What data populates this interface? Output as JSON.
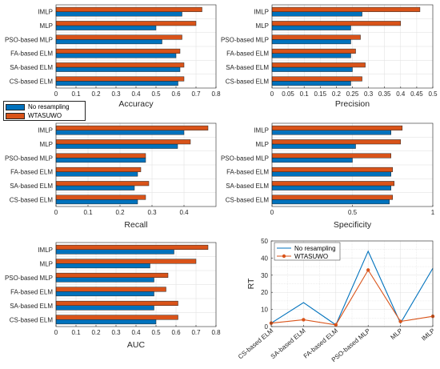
{
  "legend": {
    "entries": [
      "No resampling",
      "WTASUWO"
    ],
    "colors": [
      "#0072BD",
      "#D95319"
    ]
  },
  "chart_data": [
    {
      "type": "bar",
      "orientation": "horizontal",
      "categories": [
        "CS-based ELM",
        "SA-based ELM",
        "FA-based ELM",
        "PSO-based MLP",
        "MLP",
        "IMLP"
      ],
      "series": [
        {
          "name": "No resampling",
          "values": [
            0.61,
            0.62,
            0.6,
            0.53,
            0.5,
            0.63
          ]
        },
        {
          "name": "WTASUWO",
          "values": [
            0.64,
            0.64,
            0.62,
            0.63,
            0.7,
            0.73
          ]
        }
      ],
      "xlabel": "Accuracy",
      "xlim": [
        0,
        0.8
      ],
      "xticks": [
        "0",
        "0.1",
        "0.2",
        "0.3",
        "0.4",
        "0.5",
        "0.6",
        "0.7",
        "0.8"
      ],
      "grid": true
    },
    {
      "type": "bar",
      "orientation": "horizontal",
      "categories": [
        "CS-based ELM",
        "SA-based ELM",
        "FA-based ELM",
        "PSO-based MLP",
        "MLP",
        "IMLP"
      ],
      "series": [
        {
          "name": "No resampling",
          "values": [
            0.245,
            0.25,
            0.245,
            0.245,
            0.245,
            0.28
          ]
        },
        {
          "name": "WTASUWO",
          "values": [
            0.28,
            0.29,
            0.26,
            0.275,
            0.4,
            0.46
          ]
        }
      ],
      "xlabel": "Precision",
      "xlim": [
        0,
        0.5
      ],
      "xticks": [
        "0",
        "0.05",
        "0.1",
        "0.15",
        "0.2",
        "0.25",
        "0.3",
        "0.35",
        "0.4",
        "0.45",
        "0.5"
      ],
      "grid": true
    },
    {
      "type": "bar",
      "orientation": "horizontal",
      "categories": [
        "CS-based ELM",
        "SA-based ELM",
        "FA-based ELM",
        "PSO-based MLP",
        "MLP",
        "IMLP"
      ],
      "series": [
        {
          "name": "No resampling",
          "values": [
            0.255,
            0.245,
            0.255,
            0.28,
            0.38,
            0.4
          ]
        },
        {
          "name": "WTASUWO",
          "values": [
            0.28,
            0.29,
            0.265,
            0.28,
            0.42,
            0.475
          ]
        }
      ],
      "xlabel": "Recall",
      "xlim": [
        0,
        0.5
      ],
      "xticks": [
        "0",
        "0.1",
        "0.2",
        "0.3",
        "0.4"
      ],
      "grid": true
    },
    {
      "type": "bar",
      "orientation": "horizontal",
      "categories": [
        "CS-based ELM",
        "SA-based ELM",
        "FA-based ELM",
        "PSO-based MLP",
        "MLP",
        "IMLP"
      ],
      "series": [
        {
          "name": "No resampling",
          "values": [
            0.73,
            0.74,
            0.74,
            0.5,
            0.52,
            0.74
          ]
        },
        {
          "name": "WTASUWO",
          "values": [
            0.75,
            0.76,
            0.75,
            0.74,
            0.8,
            0.81
          ]
        }
      ],
      "xlabel": "Specificity",
      "xlim": [
        0,
        1
      ],
      "xticks": [
        "0",
        "0.5",
        "1"
      ],
      "grid": true
    },
    {
      "type": "bar",
      "orientation": "horizontal",
      "categories": [
        "CS-based ELM",
        "SA-based ELM",
        "FA-based ELM",
        "PSO-based MLP",
        "MLP",
        "IMLP"
      ],
      "series": [
        {
          "name": "No resampling",
          "values": [
            0.5,
            0.49,
            0.49,
            0.49,
            0.47,
            0.59
          ]
        },
        {
          "name": "WTASUWO",
          "values": [
            0.61,
            0.61,
            0.55,
            0.56,
            0.7,
            0.76
          ]
        }
      ],
      "xlabel": "AUC",
      "xlim": [
        0,
        0.8
      ],
      "xticks": [
        "0",
        "0.1",
        "0.2",
        "0.3",
        "0.4",
        "0.5",
        "0.6",
        "0.7",
        "0.8"
      ],
      "grid": true
    },
    {
      "type": "line",
      "categories": [
        "CS-based ELM",
        "SA-based ELM",
        "FA-based ELM",
        "PSO-based MLP",
        "MLP",
        "IMLP"
      ],
      "series": [
        {
          "name": "No resampling",
          "values": [
            2,
            14,
            1,
            44,
            2,
            34
          ]
        },
        {
          "name": "WTASUWO",
          "values": [
            2,
            4,
            1,
            33,
            3,
            6
          ]
        }
      ],
      "ylabel": "RT",
      "ylim": [
        0,
        50
      ],
      "yticks": [
        "0",
        "10",
        "20",
        "30",
        "40",
        "50"
      ],
      "grid": true,
      "legend_position": "top-left"
    }
  ]
}
